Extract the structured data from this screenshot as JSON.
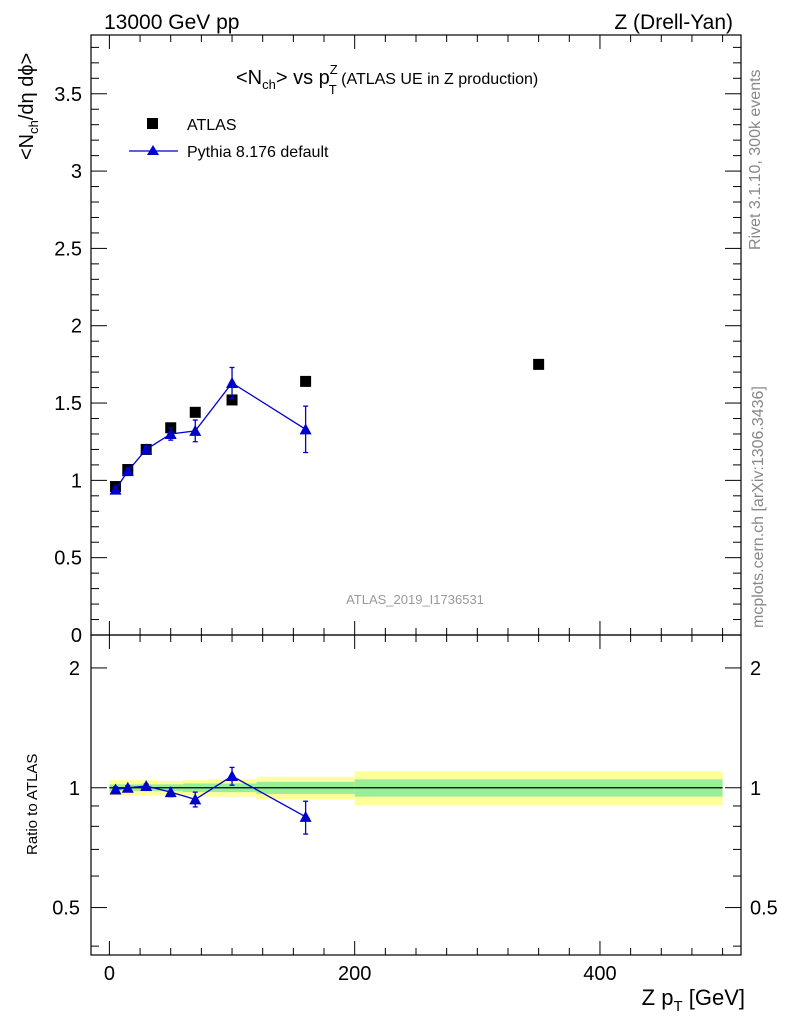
{
  "header": {
    "left": "13000 GeV pp",
    "right": "Z (Drell-Yan)"
  },
  "side_labels": {
    "top": "Rivet 3.1.10,  300k events",
    "bottom": "mcplots.cern.ch [arXiv:1306.3436]"
  },
  "watermark": "ATLAS_2019_I1736531",
  "title": {
    "prefix": "<N",
    "prefix_sub": "ch",
    "middle": "> vs p",
    "sup": "Z",
    "sub": "T",
    "suffix": " (ATLAS UE in Z production)"
  },
  "ylabel_top": {
    "a": "<N",
    "a_sub": "ch",
    "b": "/dη dϕ>"
  },
  "ylabel_bottom": "Ratio to ATLAS",
  "xlabel": {
    "main": "Z p",
    "sub": "T",
    "unit": " [GeV]"
  },
  "legend": {
    "data": "ATLAS",
    "mc": "Pythia 8.176 default"
  },
  "colors": {
    "data": "#000000",
    "mc": "#0000cc",
    "band_inner": "#99ee99",
    "band_outer": "#ffff99",
    "watermark": "#999999",
    "side_text": "#888888"
  },
  "chart_data": [
    {
      "type": "scatter",
      "panel": "main",
      "xlim": [
        -15,
        515
      ],
      "ylim": [
        0,
        3.88
      ],
      "yticks": [
        0,
        0.5,
        1,
        1.5,
        2,
        2.5,
        3,
        3.5
      ],
      "ytick_labels": [
        "0",
        "0.5",
        "1",
        "1.5",
        "2",
        "2.5",
        "3",
        "3.5"
      ],
      "series": [
        {
          "name": "ATLAS",
          "style": "square",
          "x": [
            5,
            15,
            30,
            50,
            70,
            100,
            160,
            350
          ],
          "y": [
            0.96,
            1.07,
            1.2,
            1.34,
            1.44,
            1.52,
            1.64,
            1.75
          ]
        },
        {
          "name": "Pythia 8.176 default",
          "style": "triangle-line",
          "x": [
            5,
            15,
            30,
            50,
            70,
            100,
            160
          ],
          "y": [
            0.94,
            1.06,
            1.2,
            1.3,
            1.32,
            1.63,
            1.33
          ],
          "yerr": [
            0.015,
            0.015,
            0.02,
            0.04,
            0.07,
            0.1,
            0.15
          ]
        }
      ]
    },
    {
      "type": "line",
      "panel": "ratio",
      "xlim": [
        -15,
        515
      ],
      "ylim": [
        0.38,
        2.42
      ],
      "log_y": true,
      "xticks": [
        0,
        200,
        400
      ],
      "xtick_labels": [
        "0",
        "200",
        "400"
      ],
      "yticks": [
        0.5,
        1,
        2
      ],
      "ytick_labels": [
        "0.5",
        "1",
        "2"
      ],
      "bands": [
        {
          "x0": 0,
          "x1": 10,
          "inner": [
            0.98,
            1.02
          ],
          "outer": [
            0.955,
            1.045
          ]
        },
        {
          "x0": 10,
          "x1": 20,
          "inner": [
            0.98,
            1.02
          ],
          "outer": [
            0.955,
            1.045
          ]
        },
        {
          "x0": 20,
          "x1": 40,
          "inner": [
            0.98,
            1.02
          ],
          "outer": [
            0.955,
            1.045
          ]
        },
        {
          "x0": 40,
          "x1": 60,
          "inner": [
            0.98,
            1.02
          ],
          "outer": [
            0.96,
            1.04
          ]
        },
        {
          "x0": 60,
          "x1": 80,
          "inner": [
            0.975,
            1.025
          ],
          "outer": [
            0.955,
            1.045
          ]
        },
        {
          "x0": 80,
          "x1": 120,
          "inner": [
            0.975,
            1.025
          ],
          "outer": [
            0.95,
            1.05
          ]
        },
        {
          "x0": 120,
          "x1": 200,
          "inner": [
            0.965,
            1.035
          ],
          "outer": [
            0.935,
            1.065
          ]
        },
        {
          "x0": 200,
          "x1": 500,
          "inner": [
            0.95,
            1.05
          ],
          "outer": [
            0.905,
            1.1
          ]
        }
      ],
      "series": [
        {
          "name": "Pythia 8.176 default",
          "x": [
            5,
            15,
            30,
            50,
            70,
            100,
            160
          ],
          "y": [
            0.99,
            1.0,
            1.01,
            0.975,
            0.935,
            1.07,
            0.845
          ],
          "yerr": [
            0.015,
            0.012,
            0.012,
            0.025,
            0.04,
            0.055,
            0.08
          ]
        }
      ]
    }
  ]
}
